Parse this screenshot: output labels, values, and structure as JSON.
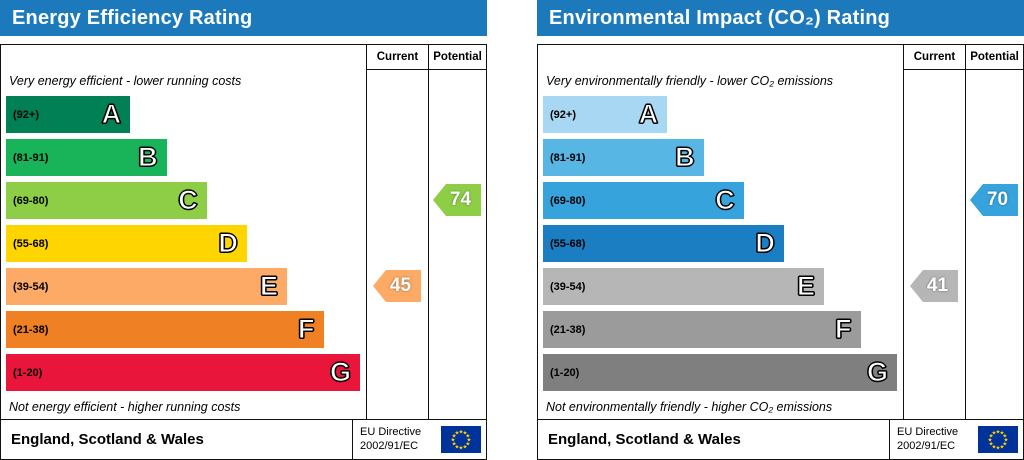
{
  "chart_data": [
    {
      "type": "bar",
      "title": "Energy Efficiency Rating",
      "header_bg": "#1c79bc",
      "columns": {
        "current": "Current",
        "potential": "Potential"
      },
      "top_note": "Very energy efficient - lower running costs",
      "bottom_note": "Not energy efficient - higher running costs",
      "bands": [
        {
          "letter": "A",
          "range": "(92+)",
          "color": "#008054",
          "width": "34%"
        },
        {
          "letter": "B",
          "range": "(81-91)",
          "color": "#19b459",
          "width": "44%"
        },
        {
          "letter": "C",
          "range": "(69-80)",
          "color": "#8dce46",
          "width": "55%"
        },
        {
          "letter": "D",
          "range": "(55-68)",
          "color": "#ffd500",
          "width": "66%"
        },
        {
          "letter": "E",
          "range": "(39-54)",
          "color": "#fcaa65",
          "width": "77%"
        },
        {
          "letter": "F",
          "range": "(21-38)",
          "color": "#ef8023",
          "width": "87%"
        },
        {
          "letter": "G",
          "range": "(1-20)",
          "color": "#e9153b",
          "width": "97%"
        }
      ],
      "current": {
        "value": 45,
        "band": "E",
        "band_index": 4,
        "color": "#fcaa65"
      },
      "potential": {
        "value": 74,
        "band": "C",
        "band_index": 2,
        "color": "#8dce46"
      },
      "footer": {
        "region": "England, Scotland & Wales",
        "directive_line1": "EU Directive",
        "directive_line2": "2002/91/EC"
      }
    },
    {
      "type": "bar",
      "title": "Environmental Impact (CO₂) Rating",
      "header_bg": "#1c79bc",
      "columns": {
        "current": "Current",
        "potential": "Potential"
      },
      "top_note": "Very environmentally friendly - lower CO₂ emissions",
      "bottom_note": "Not environmentally friendly - higher CO₂ emissions",
      "bands": [
        {
          "letter": "A",
          "range": "(92+)",
          "color": "#a7d7f2",
          "width": "34%"
        },
        {
          "letter": "B",
          "range": "(81-91)",
          "color": "#58b6e4",
          "width": "44%"
        },
        {
          "letter": "C",
          "range": "(69-80)",
          "color": "#37a3dc",
          "width": "55%"
        },
        {
          "letter": "D",
          "range": "(55-68)",
          "color": "#1b7ec2",
          "width": "66%"
        },
        {
          "letter": "E",
          "range": "(39-54)",
          "color": "#b5b6b5",
          "width": "77%"
        },
        {
          "letter": "F",
          "range": "(21-38)",
          "color": "#9b9b9b",
          "width": "87%"
        },
        {
          "letter": "G",
          "range": "(1-20)",
          "color": "#7f7f7f",
          "width": "97%"
        }
      ],
      "current": {
        "value": 41,
        "band": "E",
        "band_index": 4,
        "color": "#b5b6b5"
      },
      "potential": {
        "value": 70,
        "band": "C",
        "band_index": 2,
        "color": "#37a3dc"
      },
      "footer": {
        "region": "England, Scotland & Wales",
        "directive_line1": "EU Directive",
        "directive_line2": "2002/91/EC"
      }
    }
  ],
  "flag_colors": {
    "background": "#003399",
    "stars": "#ffcc00"
  }
}
